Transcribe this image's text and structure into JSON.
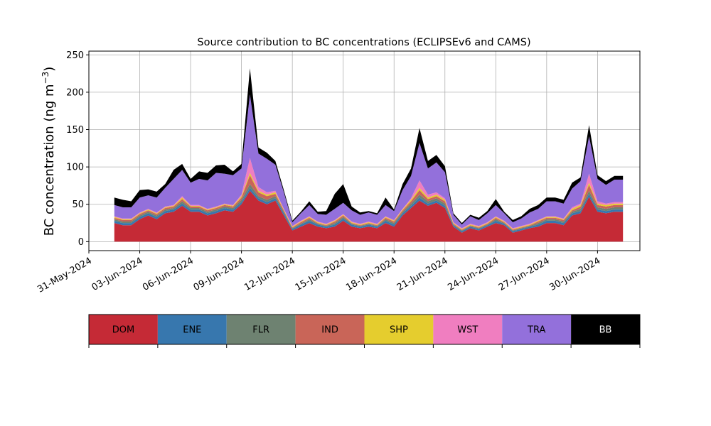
{
  "chart_data": {
    "type": "area",
    "title": "Source contribution to BC concentrations (ECLIPSEv6 and CAMS)",
    "ylabel": "BC concentration (ng m",
    "ylabel_sup": "−3",
    "ylabel_end": ")",
    "xlabel": "",
    "ylim": [
      -12,
      255
    ],
    "yticks": [
      0,
      50,
      100,
      150,
      200,
      250
    ],
    "xlim": [
      "2024-05-31T00:00",
      "2024-07-02T12:00"
    ],
    "xtick_labels": [
      "31-May-2024",
      "03-Jun-2024",
      "06-Jun-2024",
      "09-Jun-2024",
      "12-Jun-2024",
      "15-Jun-2024",
      "18-Jun-2024",
      "21-Jun-2024",
      "24-Jun-2024",
      "27-Jun-2024",
      "30-Jun-2024"
    ],
    "xtick_dates": [
      "2024-05-31",
      "2024-06-03",
      "2024-06-06",
      "2024-06-09",
      "2024-06-12",
      "2024-06-15",
      "2024-06-18",
      "2024-06-21",
      "2024-06-24",
      "2024-06-27",
      "2024-06-30"
    ],
    "grid": true,
    "stacked": true,
    "series_order": [
      "DOM",
      "ENE",
      "FLR",
      "IND",
      "SHP",
      "WST",
      "TRA",
      "BB"
    ],
    "colors": {
      "DOM": "#c52a36",
      "ENE": "#3777ae",
      "FLR": "#6e8271",
      "IND": "#c96558",
      "SHP": "#e5cd2e",
      "WST": "#f07ec0",
      "TRA": "#9370db",
      "BB": "#000000"
    },
    "x": [
      "2024-06-01T12:00",
      "2024-06-02T00:00",
      "2024-06-02T12:00",
      "2024-06-03T00:00",
      "2024-06-03T12:00",
      "2024-06-04T00:00",
      "2024-06-04T12:00",
      "2024-06-05T00:00",
      "2024-06-05T12:00",
      "2024-06-06T00:00",
      "2024-06-06T12:00",
      "2024-06-07T00:00",
      "2024-06-07T12:00",
      "2024-06-08T00:00",
      "2024-06-08T12:00",
      "2024-06-09T00:00",
      "2024-06-09T12:00",
      "2024-06-10T00:00",
      "2024-06-10T12:00",
      "2024-06-11T00:00",
      "2024-06-11T12:00",
      "2024-06-12T00:00",
      "2024-06-12T12:00",
      "2024-06-13T00:00",
      "2024-06-13T12:00",
      "2024-06-14T00:00",
      "2024-06-14T12:00",
      "2024-06-15T00:00",
      "2024-06-15T12:00",
      "2024-06-16T00:00",
      "2024-06-16T12:00",
      "2024-06-17T00:00",
      "2024-06-17T12:00",
      "2024-06-18T00:00",
      "2024-06-18T12:00",
      "2024-06-19T00:00",
      "2024-06-19T12:00",
      "2024-06-20T00:00",
      "2024-06-20T12:00",
      "2024-06-21T00:00",
      "2024-06-21T12:00",
      "2024-06-22T00:00",
      "2024-06-22T12:00",
      "2024-06-23T00:00",
      "2024-06-23T12:00",
      "2024-06-24T00:00",
      "2024-06-24T12:00",
      "2024-06-25T00:00",
      "2024-06-25T12:00",
      "2024-06-26T00:00",
      "2024-06-26T12:00",
      "2024-06-27T00:00",
      "2024-06-27T12:00",
      "2024-06-28T00:00",
      "2024-06-28T12:00",
      "2024-06-29T00:00",
      "2024-06-29T12:00",
      "2024-06-30T00:00",
      "2024-06-30T12:00",
      "2024-07-01T00:00",
      "2024-07-01T12:00"
    ],
    "series": [
      {
        "name": "DOM",
        "values": [
          25,
          22,
          22,
          30,
          35,
          30,
          38,
          40,
          48,
          40,
          40,
          35,
          38,
          42,
          40,
          50,
          68,
          55,
          50,
          55,
          35,
          15,
          20,
          25,
          20,
          18,
          20,
          28,
          20,
          18,
          20,
          18,
          25,
          20,
          35,
          45,
          55,
          48,
          52,
          45,
          20,
          12,
          18,
          15,
          20,
          25,
          22,
          12,
          15,
          18,
          20,
          25,
          25,
          22,
          35,
          38,
          60,
          40,
          38,
          40,
          40
        ]
      },
      {
        "name": "ENE",
        "values": [
          3,
          3,
          3,
          3,
          3,
          3,
          3,
          3,
          3,
          3,
          3,
          3,
          3,
          3,
          3,
          3,
          4,
          3,
          3,
          3,
          3,
          2,
          3,
          3,
          3,
          2,
          3,
          3,
          3,
          2,
          3,
          2,
          3,
          3,
          3,
          3,
          4,
          3,
          3,
          3,
          2,
          2,
          2,
          2,
          2,
          3,
          2,
          2,
          2,
          2,
          3,
          3,
          3,
          3,
          3,
          3,
          4,
          3,
          3,
          3,
          3
        ]
      },
      {
        "name": "FLR",
        "values": [
          2,
          2,
          2,
          2,
          2,
          2,
          2,
          2,
          3,
          2,
          2,
          2,
          2,
          2,
          2,
          3,
          5,
          3,
          3,
          3,
          2,
          1,
          1,
          2,
          1,
          1,
          2,
          2,
          1,
          1,
          1,
          1,
          2,
          2,
          2,
          3,
          4,
          3,
          3,
          3,
          1,
          1,
          1,
          1,
          1,
          2,
          1,
          1,
          1,
          1,
          2,
          2,
          2,
          2,
          2,
          3,
          4,
          3,
          3,
          3,
          3
        ]
      },
      {
        "name": "IND",
        "values": [
          2,
          2,
          2,
          2,
          2,
          2,
          2,
          2,
          3,
          2,
          2,
          2,
          2,
          2,
          2,
          3,
          12,
          5,
          5,
          3,
          2,
          1,
          2,
          2,
          1,
          1,
          2,
          2,
          1,
          1,
          1,
          1,
          2,
          2,
          2,
          3,
          6,
          3,
          3,
          3,
          1,
          1,
          1,
          1,
          1,
          2,
          1,
          1,
          1,
          1,
          2,
          2,
          2,
          2,
          2,
          3,
          8,
          3,
          3,
          3,
          3
        ]
      },
      {
        "name": "SHP",
        "values": [
          1,
          1,
          1,
          1,
          1,
          1,
          1,
          1,
          2,
          1,
          1,
          1,
          1,
          1,
          1,
          2,
          3,
          2,
          2,
          2,
          1,
          1,
          1,
          1,
          1,
          1,
          1,
          1,
          1,
          1,
          1,
          1,
          1,
          1,
          1,
          2,
          3,
          2,
          2,
          2,
          1,
          1,
          1,
          1,
          1,
          1,
          1,
          1,
          1,
          1,
          1,
          1,
          1,
          1,
          2,
          2,
          3,
          2,
          2,
          2,
          2
        ]
      },
      {
        "name": "WST",
        "values": [
          1,
          1,
          1,
          1,
          1,
          1,
          1,
          1,
          2,
          1,
          1,
          1,
          1,
          1,
          1,
          2,
          20,
          5,
          3,
          2,
          1,
          1,
          1,
          1,
          1,
          1,
          1,
          1,
          1,
          1,
          1,
          1,
          1,
          1,
          1,
          2,
          10,
          4,
          3,
          2,
          1,
          1,
          1,
          1,
          1,
          1,
          1,
          1,
          1,
          1,
          1,
          1,
          1,
          1,
          2,
          2,
          12,
          3,
          2,
          2,
          2
        ]
      },
      {
        "name": "TRA",
        "values": [
          15,
          15,
          15,
          20,
          18,
          20,
          25,
          35,
          35,
          30,
          35,
          38,
          45,
          40,
          40,
          35,
          85,
          45,
          45,
          35,
          22,
          5,
          10,
          15,
          10,
          12,
          15,
          15,
          15,
          12,
          12,
          12,
          15,
          12,
          25,
          30,
          50,
          35,
          40,
          35,
          10,
          5,
          10,
          8,
          12,
          15,
          10,
          8,
          10,
          15,
          15,
          20,
          20,
          20,
          25,
          30,
          50,
          30,
          25,
          30,
          30
        ]
      },
      {
        "name": "BB",
        "values": [
          10,
          10,
          8,
          10,
          8,
          8,
          5,
          12,
          8,
          5,
          10,
          10,
          10,
          12,
          5,
          6,
          35,
          8,
          8,
          5,
          3,
          2,
          2,
          5,
          3,
          5,
          20,
          25,
          5,
          3,
          2,
          2,
          10,
          2,
          8,
          10,
          20,
          10,
          10,
          8,
          2,
          2,
          2,
          3,
          3,
          8,
          2,
          3,
          3,
          5,
          5,
          5,
          5,
          5,
          8,
          5,
          15,
          5,
          5,
          5,
          5
        ]
      }
    ],
    "legend": {
      "placement": "bottom",
      "entries": [
        "DOM",
        "ENE",
        "FLR",
        "IND",
        "SHP",
        "WST",
        "TRA",
        "BB"
      ]
    }
  }
}
